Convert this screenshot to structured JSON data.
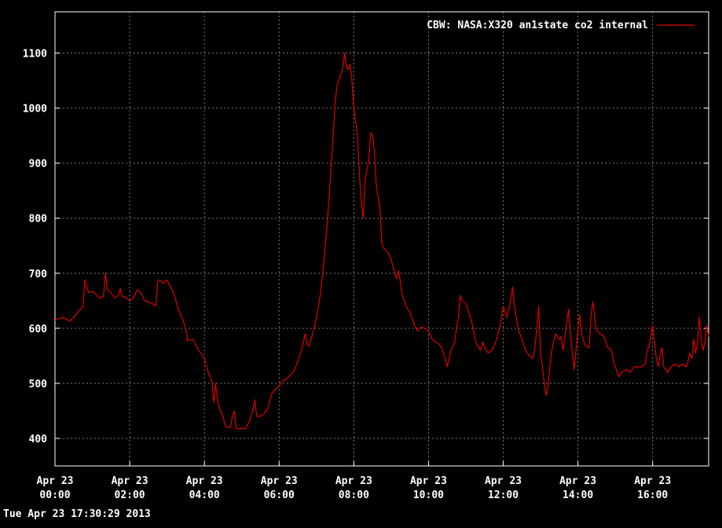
{
  "chart_data": {
    "type": "line",
    "title": "",
    "xlabel": "",
    "ylabel": "",
    "ylim": [
      350,
      1175
    ],
    "xlim_hours": [
      0,
      17.5
    ],
    "grid": true,
    "legend_position": "top-right",
    "yticks": [
      400,
      500,
      600,
      700,
      800,
      900,
      1000,
      1100
    ],
    "xticks": [
      {
        "h": 0,
        "line1": "Apr 23",
        "line2": "00:00"
      },
      {
        "h": 2,
        "line1": "Apr 23",
        "line2": "02:00"
      },
      {
        "h": 4,
        "line1": "Apr 23",
        "line2": "04:00"
      },
      {
        "h": 6,
        "line1": "Apr 23",
        "line2": "06:00"
      },
      {
        "h": 8,
        "line1": "Apr 23",
        "line2": "08:00"
      },
      {
        "h": 10,
        "line1": "Apr 23",
        "line2": "10:00"
      },
      {
        "h": 12,
        "line1": "Apr 23",
        "line2": "12:00"
      },
      {
        "h": 14,
        "line1": "Apr 23",
        "line2": "14:00"
      },
      {
        "h": 16,
        "line1": "Apr 23",
        "line2": "16:00"
      }
    ],
    "series": [
      {
        "name": "CBW: NASA:X320 an1state co2 internal",
        "color": "#dd0000",
        "points": [
          [
            0.0,
            615
          ],
          [
            0.2,
            620
          ],
          [
            0.4,
            613
          ],
          [
            0.6,
            628
          ],
          [
            0.75,
            640
          ],
          [
            0.8,
            688
          ],
          [
            0.9,
            665
          ],
          [
            1.0,
            667
          ],
          [
            1.1,
            662
          ],
          [
            1.2,
            655
          ],
          [
            1.3,
            658
          ],
          [
            1.35,
            700
          ],
          [
            1.4,
            670
          ],
          [
            1.5,
            665
          ],
          [
            1.6,
            655
          ],
          [
            1.7,
            660
          ],
          [
            1.75,
            672
          ],
          [
            1.8,
            658
          ],
          [
            1.9,
            656
          ],
          [
            2.0,
            650
          ],
          [
            2.1,
            655
          ],
          [
            2.2,
            670
          ],
          [
            2.3,
            665
          ],
          [
            2.4,
            650
          ],
          [
            2.5,
            648
          ],
          [
            2.6,
            645
          ],
          [
            2.7,
            640
          ],
          [
            2.75,
            685
          ],
          [
            2.8,
            688
          ],
          [
            2.9,
            682
          ],
          [
            3.0,
            688
          ],
          [
            3.1,
            675
          ],
          [
            3.2,
            660
          ],
          [
            3.3,
            635
          ],
          [
            3.4,
            620
          ],
          [
            3.5,
            600
          ],
          [
            3.55,
            578
          ],
          [
            3.7,
            580
          ],
          [
            3.8,
            565
          ],
          [
            3.9,
            555
          ],
          [
            4.0,
            545
          ],
          [
            4.1,
            520
          ],
          [
            4.2,
            505
          ],
          [
            4.25,
            465
          ],
          [
            4.3,
            500
          ],
          [
            4.35,
            470
          ],
          [
            4.4,
            455
          ],
          [
            4.5,
            440
          ],
          [
            4.55,
            425
          ],
          [
            4.6,
            420
          ],
          [
            4.7,
            420
          ],
          [
            4.75,
            440
          ],
          [
            4.8,
            450
          ],
          [
            4.85,
            420
          ],
          [
            4.9,
            417
          ],
          [
            5.0,
            418
          ],
          [
            5.1,
            418
          ],
          [
            5.2,
            430
          ],
          [
            5.3,
            452
          ],
          [
            5.35,
            470
          ],
          [
            5.4,
            440
          ],
          [
            5.5,
            440
          ],
          [
            5.6,
            445
          ],
          [
            5.7,
            455
          ],
          [
            5.8,
            480
          ],
          [
            5.9,
            490
          ],
          [
            6.0,
            495
          ],
          [
            6.1,
            505
          ],
          [
            6.2,
            508
          ],
          [
            6.3,
            515
          ],
          [
            6.4,
            522
          ],
          [
            6.5,
            540
          ],
          [
            6.6,
            560
          ],
          [
            6.7,
            590
          ],
          [
            6.75,
            570
          ],
          [
            6.8,
            568
          ],
          [
            6.9,
            590
          ],
          [
            7.0,
            620
          ],
          [
            7.1,
            660
          ],
          [
            7.2,
            720
          ],
          [
            7.3,
            800
          ],
          [
            7.4,
            900
          ],
          [
            7.5,
            1010
          ],
          [
            7.55,
            1040
          ],
          [
            7.6,
            1050
          ],
          [
            7.7,
            1070
          ],
          [
            7.75,
            1100
          ],
          [
            7.8,
            1078
          ],
          [
            7.85,
            1070
          ],
          [
            7.9,
            1080
          ],
          [
            7.95,
            1050
          ],
          [
            8.0,
            1000
          ],
          [
            8.1,
            950
          ],
          [
            8.15,
            880
          ],
          [
            8.2,
            830
          ],
          [
            8.25,
            800
          ],
          [
            8.3,
            870
          ],
          [
            8.4,
            905
          ],
          [
            8.45,
            955
          ],
          [
            8.5,
            952
          ],
          [
            8.55,
            920
          ],
          [
            8.6,
            860
          ],
          [
            8.7,
            820
          ],
          [
            8.75,
            755
          ],
          [
            8.8,
            745
          ],
          [
            8.9,
            740
          ],
          [
            9.0,
            725
          ],
          [
            9.1,
            700
          ],
          [
            9.15,
            690
          ],
          [
            9.2,
            705
          ],
          [
            9.3,
            660
          ],
          [
            9.4,
            640
          ],
          [
            9.5,
            630
          ],
          [
            9.6,
            610
          ],
          [
            9.7,
            595
          ],
          [
            9.8,
            602
          ],
          [
            9.9,
            600
          ],
          [
            10.0,
            595
          ],
          [
            10.1,
            580
          ],
          [
            10.2,
            575
          ],
          [
            10.3,
            570
          ],
          [
            10.35,
            565
          ],
          [
            10.45,
            545
          ],
          [
            10.5,
            530
          ],
          [
            10.55,
            545
          ],
          [
            10.6,
            560
          ],
          [
            10.7,
            575
          ],
          [
            10.75,
            600
          ],
          [
            10.8,
            620
          ],
          [
            10.85,
            660
          ],
          [
            10.9,
            650
          ],
          [
            11.0,
            645
          ],
          [
            11.1,
            625
          ],
          [
            11.2,
            600
          ],
          [
            11.25,
            580
          ],
          [
            11.3,
            570
          ],
          [
            11.4,
            560
          ],
          [
            11.45,
            575
          ],
          [
            11.5,
            565
          ],
          [
            11.6,
            555
          ],
          [
            11.7,
            560
          ],
          [
            11.8,
            575
          ],
          [
            11.9,
            600
          ],
          [
            12.0,
            640
          ],
          [
            12.1,
            620
          ],
          [
            12.2,
            650
          ],
          [
            12.25,
            675
          ],
          [
            12.3,
            640
          ],
          [
            12.4,
            600
          ],
          [
            12.5,
            580
          ],
          [
            12.6,
            560
          ],
          [
            12.7,
            550
          ],
          [
            12.8,
            545
          ],
          [
            12.85,
            565
          ],
          [
            12.9,
            600
          ],
          [
            12.95,
            640
          ],
          [
            13.0,
            555
          ],
          [
            13.05,
            530
          ],
          [
            13.1,
            500
          ],
          [
            13.15,
            478
          ],
          [
            13.2,
            495
          ],
          [
            13.25,
            530
          ],
          [
            13.3,
            560
          ],
          [
            13.35,
            575
          ],
          [
            13.4,
            590
          ],
          [
            13.5,
            580
          ],
          [
            13.55,
            585
          ],
          [
            13.6,
            560
          ],
          [
            13.7,
            610
          ],
          [
            13.75,
            635
          ],
          [
            13.8,
            590
          ],
          [
            13.85,
            555
          ],
          [
            13.9,
            525
          ],
          [
            13.95,
            560
          ],
          [
            14.0,
            600
          ],
          [
            14.05,
            625
          ],
          [
            14.1,
            590
          ],
          [
            14.2,
            568
          ],
          [
            14.3,
            565
          ],
          [
            14.35,
            620
          ],
          [
            14.4,
            648
          ],
          [
            14.45,
            620
          ],
          [
            14.5,
            595
          ],
          [
            14.6,
            590
          ],
          [
            14.7,
            585
          ],
          [
            14.8,
            565
          ],
          [
            14.9,
            560
          ],
          [
            14.95,
            540
          ],
          [
            15.0,
            530
          ],
          [
            15.1,
            512
          ],
          [
            15.2,
            522
          ],
          [
            15.3,
            525
          ],
          [
            15.4,
            520
          ],
          [
            15.5,
            530
          ],
          [
            15.6,
            530
          ],
          [
            15.7,
            530
          ],
          [
            15.8,
            535
          ],
          [
            15.85,
            560
          ],
          [
            15.9,
            565
          ],
          [
            15.95,
            585
          ],
          [
            16.0,
            605
          ],
          [
            16.05,
            575
          ],
          [
            16.1,
            545
          ],
          [
            16.15,
            530
          ],
          [
            16.2,
            550
          ],
          [
            16.25,
            565
          ],
          [
            16.3,
            530
          ],
          [
            16.35,
            525
          ],
          [
            16.4,
            520
          ],
          [
            16.5,
            530
          ],
          [
            16.6,
            535
          ],
          [
            16.7,
            530
          ],
          [
            16.8,
            535
          ],
          [
            16.9,
            530
          ],
          [
            16.95,
            540
          ],
          [
            17.0,
            555
          ],
          [
            17.05,
            545
          ],
          [
            17.1,
            580
          ],
          [
            17.15,
            555
          ],
          [
            17.2,
            575
          ],
          [
            17.25,
            620
          ],
          [
            17.3,
            580
          ],
          [
            17.35,
            560
          ],
          [
            17.4,
            575
          ],
          [
            17.45,
            605
          ],
          [
            17.5,
            585
          ]
        ]
      }
    ]
  },
  "footer": {
    "timestamp": "Tue Apr 23 17:30:29 2013"
  }
}
